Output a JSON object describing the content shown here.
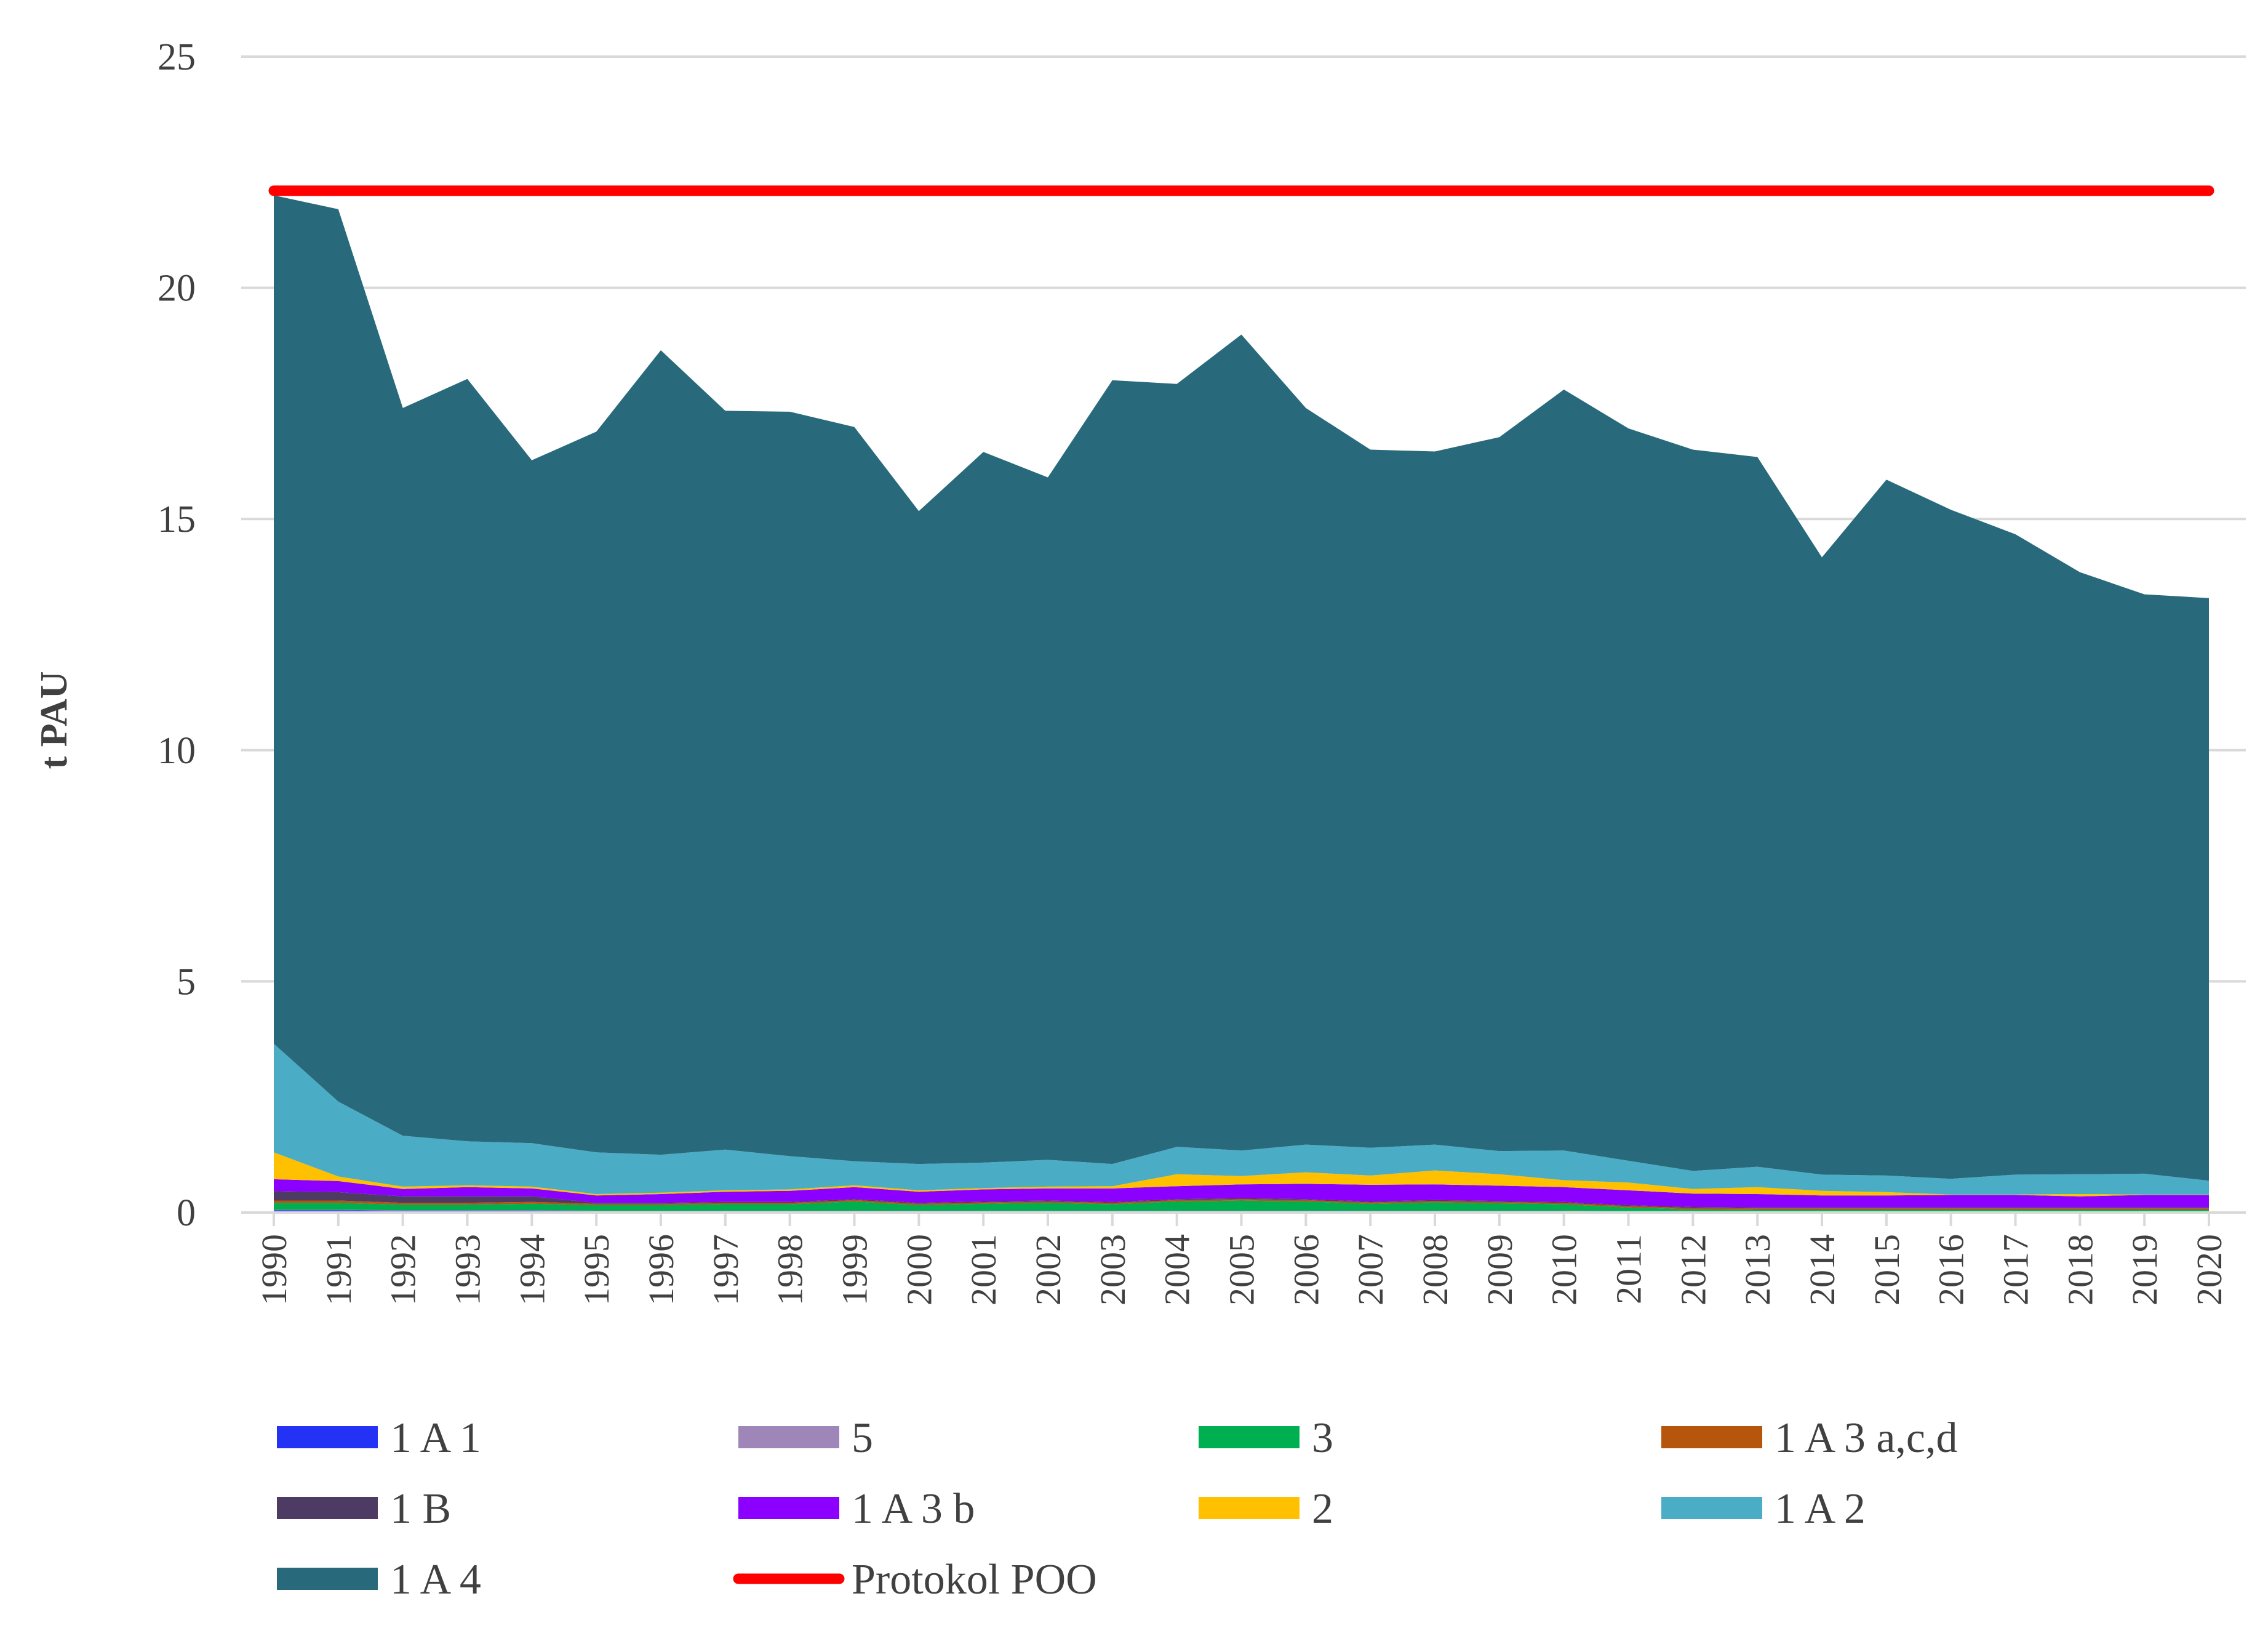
{
  "chart_data": {
    "type": "area",
    "stacked": true,
    "title": "",
    "xlabel": "",
    "ylabel": "t PAU",
    "ylim": [
      0,
      25
    ],
    "yticks": [
      0,
      5,
      10,
      15,
      20,
      25
    ],
    "grid": true,
    "legend_position": "bottom",
    "x": [
      "1990",
      "1991",
      "1992",
      "1993",
      "1994",
      "1995",
      "1996",
      "1997",
      "1998",
      "1999",
      "2000",
      "2001",
      "2002",
      "2003",
      "2004",
      "2005",
      "2006",
      "2007",
      "2008",
      "2009",
      "2010",
      "2011",
      "2012",
      "2013",
      "2014",
      "2015",
      "2016",
      "2017",
      "2018",
      "2019",
      "2020"
    ],
    "series": [
      {
        "name": "1 A 1",
        "color": "#2332f5",
        "values": [
          0.05,
          0.05,
          0.04,
          0.04,
          0.04,
          0.03,
          0.03,
          0.03,
          0.03,
          0.03,
          0.03,
          0.03,
          0.03,
          0.03,
          0.03,
          0.03,
          0.03,
          0.03,
          0.03,
          0.03,
          0.03,
          0.02,
          0.02,
          0.02,
          0.02,
          0.02,
          0.02,
          0.02,
          0.02,
          0.02,
          0.02
        ]
      },
      {
        "name": "5",
        "color": "#9e87b8",
        "values": [
          0.01,
          0.01,
          0.01,
          0.01,
          0.01,
          0.01,
          0.01,
          0.01,
          0.01,
          0.01,
          0.01,
          0.01,
          0.01,
          0.01,
          0.01,
          0.01,
          0.01,
          0.01,
          0.01,
          0.01,
          0.01,
          0.01,
          0.01,
          0.01,
          0.01,
          0.01,
          0.01,
          0.01,
          0.01,
          0.01,
          0.01
        ]
      },
      {
        "name": "3",
        "color": "#00b050",
        "values": [
          0.15,
          0.15,
          0.12,
          0.12,
          0.14,
          0.12,
          0.12,
          0.14,
          0.14,
          0.2,
          0.12,
          0.15,
          0.17,
          0.14,
          0.2,
          0.22,
          0.2,
          0.15,
          0.18,
          0.16,
          0.14,
          0.08,
          0.04,
          0.03,
          0.03,
          0.03,
          0.03,
          0.03,
          0.03,
          0.03,
          0.03
        ]
      },
      {
        "name": "1 A 3 a,c,d",
        "color": "#b5560c",
        "values": [
          0.05,
          0.05,
          0.04,
          0.04,
          0.04,
          0.03,
          0.03,
          0.03,
          0.03,
          0.03,
          0.03,
          0.03,
          0.03,
          0.03,
          0.03,
          0.03,
          0.03,
          0.03,
          0.03,
          0.03,
          0.03,
          0.03,
          0.03,
          0.03,
          0.03,
          0.03,
          0.03,
          0.03,
          0.03,
          0.03,
          0.03
        ]
      },
      {
        "name": "1 B",
        "color": "#4d3b63",
        "values": [
          0.2,
          0.18,
          0.14,
          0.14,
          0.12,
          0.02,
          0.02,
          0.02,
          0.02,
          0.02,
          0.02,
          0.02,
          0.02,
          0.02,
          0.02,
          0.02,
          0.02,
          0.02,
          0.02,
          0.02,
          0.02,
          0.02,
          0.02,
          0.02,
          0.02,
          0.02,
          0.02,
          0.02,
          0.02,
          0.02,
          0.02
        ]
      },
      {
        "name": "1 A 3 b",
        "color": "#8b00ff",
        "values": [
          0.26,
          0.24,
          0.16,
          0.2,
          0.17,
          0.16,
          0.19,
          0.22,
          0.24,
          0.26,
          0.24,
          0.26,
          0.26,
          0.29,
          0.28,
          0.3,
          0.33,
          0.36,
          0.34,
          0.33,
          0.32,
          0.32,
          0.29,
          0.29,
          0.26,
          0.26,
          0.27,
          0.27,
          0.24,
          0.27,
          0.27
        ]
      },
      {
        "name": "2",
        "color": "#ffc000",
        "values": [
          0.58,
          0.1,
          0.05,
          0.04,
          0.04,
          0.03,
          0.03,
          0.03,
          0.03,
          0.04,
          0.03,
          0.03,
          0.04,
          0.05,
          0.26,
          0.18,
          0.25,
          0.2,
          0.3,
          0.25,
          0.15,
          0.17,
          0.1,
          0.15,
          0.1,
          0.07,
          0.01,
          0.01,
          0.05,
          0.01,
          0.01
        ]
      },
      {
        "name": "1 A 2",
        "color": "#4bacc6",
        "values": [
          2.35,
          1.62,
          1.1,
          0.95,
          0.94,
          0.9,
          0.82,
          0.88,
          0.72,
          0.52,
          0.57,
          0.55,
          0.58,
          0.48,
          0.59,
          0.55,
          0.6,
          0.6,
          0.56,
          0.5,
          0.64,
          0.47,
          0.39,
          0.44,
          0.35,
          0.36,
          0.34,
          0.43,
          0.43,
          0.45,
          0.3
        ]
      },
      {
        "name": "1 A 4",
        "color": "#286a7b",
        "values": [
          18.35,
          19.3,
          15.74,
          16.49,
          14.77,
          15.59,
          17.4,
          15.98,
          16.1,
          15.88,
          14.12,
          15.37,
          14.76,
          16.95,
          16.5,
          17.65,
          15.93,
          15.1,
          14.99,
          15.44,
          16.46,
          15.84,
          15.6,
          15.35,
          13.35,
          15.05,
          14.47,
          13.85,
          13.02,
          12.53,
          12.6
        ]
      }
    ],
    "reference_lines": [
      {
        "name": "Protokol POO",
        "color": "#ff0000",
        "value": 22.1
      }
    ],
    "legend": [
      "1 A 1",
      "5",
      "3",
      "1 A 3 a,c,d",
      "1 B",
      "1 A 3 b",
      "2",
      "1 A 2",
      "1 A 4",
      "Protokol POO"
    ]
  }
}
